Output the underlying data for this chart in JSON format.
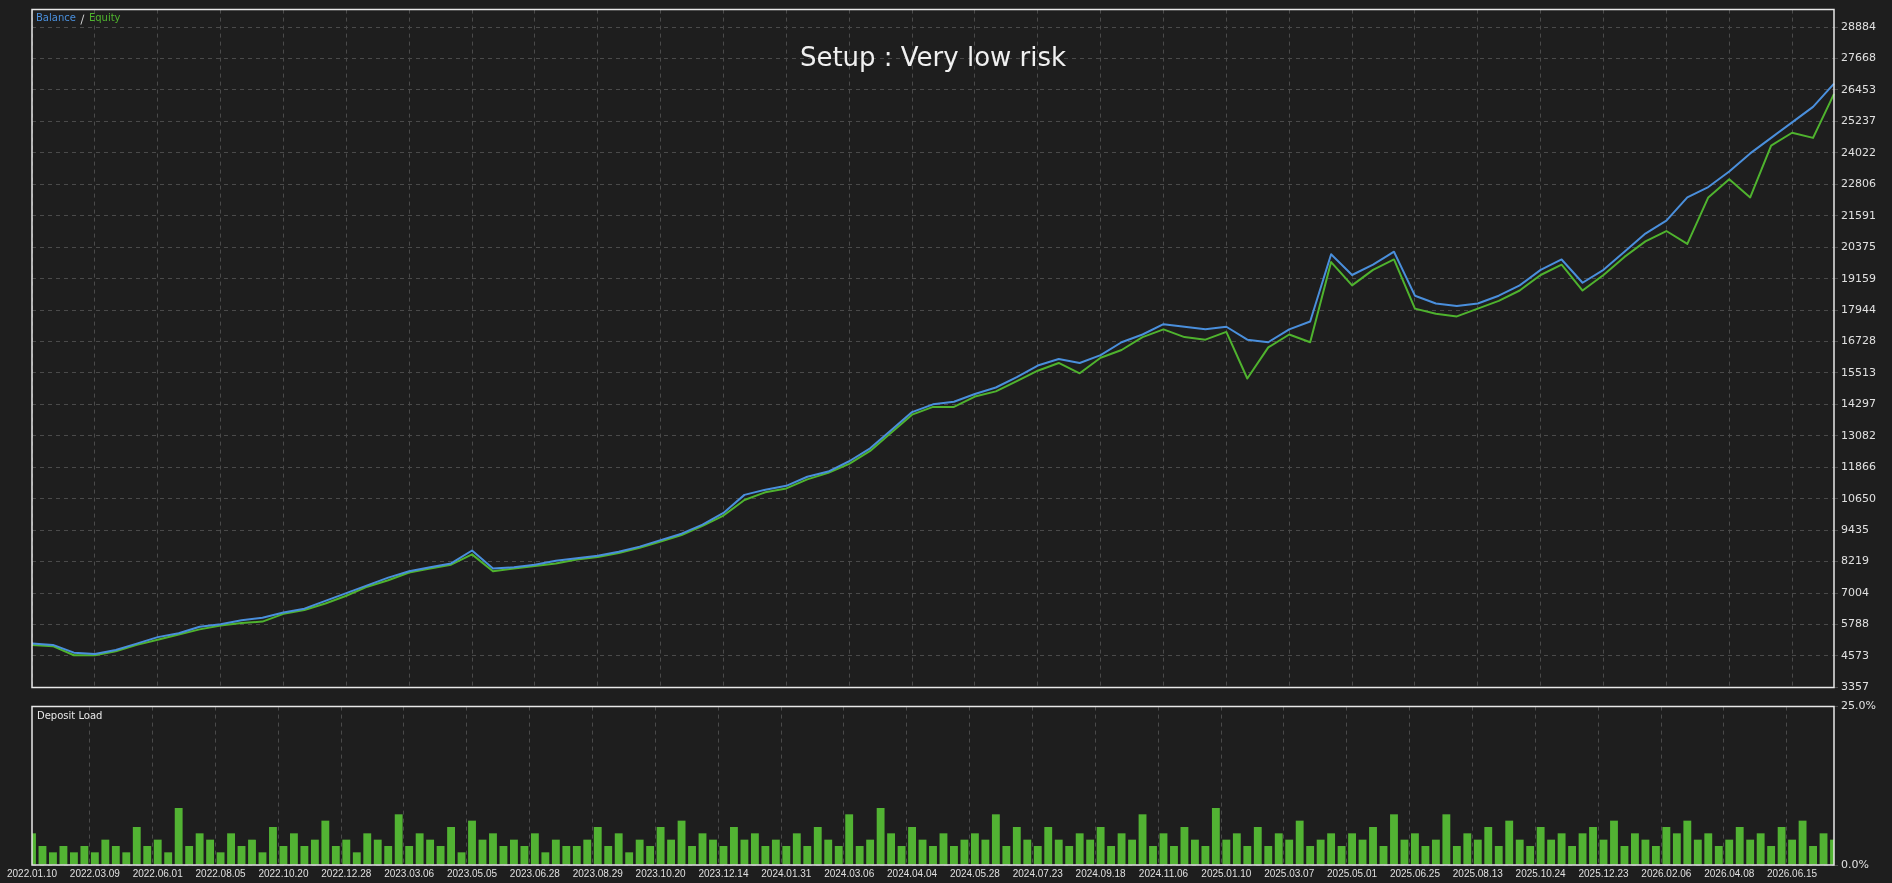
{
  "chart_data": [
    {
      "type": "line",
      "title": "Setup : Very low risk",
      "legend": "top left",
      "grid": true,
      "tick_labels": "y",
      "categories": [
        "2022.01.10",
        null,
        null,
        "2022.03.09",
        null,
        null,
        "2022.06.01",
        null,
        null,
        "2022.08.05",
        null,
        null,
        "2022.10.20",
        null,
        null,
        "2022.12.28",
        null,
        null,
        "2023.03.06",
        null,
        null,
        "2023.05.05",
        null,
        null,
        "2023.06.28",
        null,
        null,
        "2023.08.29",
        null,
        null,
        "2023.10.20",
        null,
        null,
        "2023.12.14",
        null,
        null,
        "2024.01.31",
        null,
        null,
        "2024.03.06",
        null,
        null,
        "2024.04.04",
        null,
        null,
        "2024.05.28",
        null,
        null,
        "2024.07.23",
        null,
        null,
        "2024.09.18",
        null,
        null,
        "2024.11.06",
        null,
        null,
        "2025.01.10",
        null,
        null,
        "2025.03.07",
        null,
        null,
        "2025.05.01",
        null,
        null,
        "2025.06.25",
        null,
        null,
        "2025.08.13",
        null,
        null,
        "2025.10.24",
        null,
        null,
        "2025.12.23",
        null,
        null,
        "2026.02.06",
        null,
        null,
        "2026.04.08",
        null,
        null,
        "2026.06.15",
        null,
        null
      ],
      "ylim": [
        3357,
        29560
      ],
      "yticks": [
        3357,
        4573,
        5788,
        7004,
        8219,
        9435,
        10650,
        11866,
        13082,
        14297,
        15513,
        16728,
        17944,
        19159,
        20375,
        21591,
        22806,
        24022,
        25237,
        26453,
        27668,
        28884
      ],
      "series": [
        {
          "name": "Balance",
          "color": "#4a8fdc",
          "values": [
            5050,
            5000,
            4700,
            4650,
            4800,
            5050,
            5300,
            5450,
            5700,
            5800,
            5950,
            6050,
            6250,
            6400,
            6700,
            7000,
            7300,
            7600,
            7850,
            8000,
            8150,
            8650,
            7950,
            8000,
            8100,
            8250,
            8350,
            8450,
            8600,
            8800,
            9050,
            9300,
            9650,
            10100,
            10800,
            11000,
            11150,
            11500,
            11700,
            12100,
            12600,
            13300,
            14000,
            14300,
            14400,
            14700,
            14950,
            15350,
            15800,
            16050,
            15900,
            16200,
            16700,
            17000,
            17400,
            17300,
            17200,
            17300,
            16800,
            16700,
            17200,
            17500,
            20100,
            19300,
            19700,
            20200,
            18500,
            18200,
            18100,
            18200,
            18500,
            18900,
            19500,
            19900,
            19000,
            19500,
            20200,
            20900,
            21400,
            22300,
            22700,
            23300,
            24000,
            24600,
            25200,
            25800,
            26700
          ]
        },
        {
          "name": "Equity",
          "color": "#4fb32e",
          "values": [
            5000,
            4950,
            4600,
            4600,
            4750,
            5000,
            5200,
            5400,
            5600,
            5750,
            5850,
            5900,
            6200,
            6350,
            6600,
            6900,
            7250,
            7500,
            7800,
            7950,
            8100,
            8500,
            7850,
            7950,
            8050,
            8150,
            8300,
            8400,
            8550,
            8750,
            9000,
            9250,
            9600,
            10000,
            10600,
            10900,
            11050,
            11400,
            11650,
            12000,
            12500,
            13200,
            13900,
            14200,
            14200,
            14600,
            14800,
            15200,
            15600,
            15900,
            15500,
            16100,
            16400,
            16900,
            17200,
            16900,
            16800,
            17100,
            15300,
            16500,
            17000,
            16700,
            19800,
            18900,
            19500,
            19900,
            18000,
            17800,
            17700,
            18000,
            18300,
            18700,
            19300,
            19700,
            18700,
            19300,
            20000,
            20600,
            21000,
            20500,
            22300,
            23000,
            22300,
            24300,
            24800,
            24600,
            26300
          ]
        }
      ]
    },
    {
      "type": "bar",
      "title": "Deposit Load",
      "color": "#52b333",
      "grid": true,
      "ylim": [
        0,
        25
      ],
      "yticks": [
        {
          "value": 0,
          "label": "0.0%"
        },
        {
          "value": 25,
          "label": "25.0%"
        }
      ],
      "categories": [
        "2022.01.10",
        null,
        null,
        null,
        null,
        null,
        "2022.03.09",
        null,
        null,
        null,
        null,
        null,
        "2022.06.01",
        null,
        null,
        null,
        null,
        null,
        "2022.08.05",
        null,
        null,
        null,
        null,
        null,
        "2022.10.20",
        null,
        null,
        null,
        null,
        null,
        "2022.12.28",
        null,
        null,
        null,
        null,
        null,
        "2023.03.06",
        null,
        null,
        null,
        null,
        null,
        "2023.05.05",
        null,
        null,
        null,
        null,
        null,
        "2023.06.28",
        null,
        null,
        null,
        null,
        null,
        "2023.08.29",
        null,
        null,
        null,
        null,
        null,
        "2023.10.20",
        null,
        null,
        null,
        null,
        null,
        "2023.12.14",
        null,
        null,
        null,
        null,
        null,
        "2024.01.31",
        null,
        null,
        null,
        null,
        null,
        "2024.03.06",
        null,
        null,
        null,
        null,
        null,
        "2024.04.04",
        null,
        null,
        null,
        null,
        null,
        "2024.05.28",
        null,
        null,
        null,
        null,
        null,
        "2024.07.23",
        null,
        null,
        null,
        null,
        null,
        "2024.09.18",
        null,
        null,
        null,
        null,
        null,
        "2024.11.06",
        null,
        null,
        null,
        null,
        null,
        "2025.01.10",
        null,
        null,
        null,
        null,
        null,
        "2025.03.07",
        null,
        null,
        null,
        null,
        null,
        "2025.05.01",
        null,
        null,
        null,
        null,
        null,
        "2025.06.25",
        null,
        null,
        null,
        null,
        null,
        "2025.08.13",
        null,
        null,
        null,
        null,
        null,
        "2025.10.24",
        null,
        null,
        null,
        null,
        null,
        "2025.12.23",
        null,
        null,
        null,
        null,
        null,
        "2026.02.06",
        null,
        null,
        null,
        null,
        null,
        "2026.04.08",
        null,
        null,
        null,
        null,
        null,
        "2026.06.15",
        null,
        null,
        null,
        null
      ],
      "values": [
        5,
        3,
        2,
        3,
        2,
        3,
        2,
        4,
        3,
        2,
        6,
        3,
        4,
        2,
        9,
        3,
        5,
        4,
        2,
        5,
        3,
        4,
        2,
        6,
        3,
        5,
        3,
        4,
        7,
        3,
        4,
        2,
        5,
        4,
        3,
        8,
        3,
        5,
        4,
        3,
        6,
        2,
        7,
        4,
        5,
        3,
        4,
        3,
        5,
        2,
        4,
        3,
        3,
        4,
        6,
        3,
        5,
        2,
        4,
        3,
        6,
        4,
        7,
        3,
        5,
        4,
        3,
        6,
        4,
        5,
        3,
        4,
        3,
        5,
        3,
        6,
        4,
        3,
        8,
        3,
        4,
        9,
        5,
        3,
        6,
        4,
        3,
        5,
        3,
        4,
        5,
        4,
        8,
        3,
        6,
        4,
        3,
        6,
        4,
        3,
        5,
        4,
        6,
        3,
        5,
        4,
        8,
        3,
        5,
        3,
        6,
        4,
        3,
        9,
        4,
        5,
        3,
        6,
        3,
        5,
        4,
        7,
        3,
        4,
        5,
        3,
        5,
        4,
        6,
        3,
        8,
        4,
        5,
        3,
        4,
        8,
        3,
        5,
        4,
        6,
        3,
        7,
        4,
        3,
        6,
        4,
        5,
        3,
        5,
        6,
        4,
        7,
        3,
        5,
        4,
        3,
        6,
        5,
        7,
        4,
        5,
        3,
        4,
        6,
        4,
        5,
        3,
        6,
        4,
        7,
        3,
        5,
        4
      ]
    }
  ]
}
